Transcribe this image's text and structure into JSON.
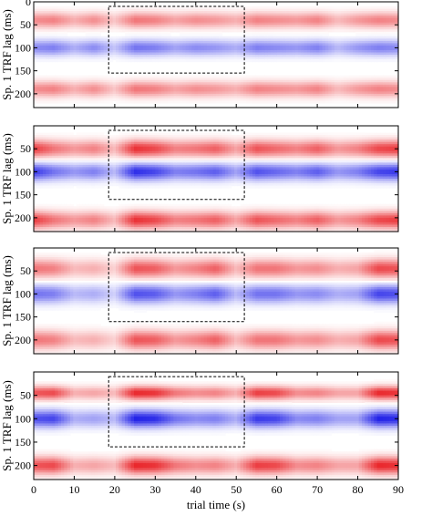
{
  "chart_data": [
    {
      "type": "heatmap",
      "panel_index": 1,
      "ylabel": "Sp. 1 TRF lag (ms)",
      "yticks": [
        0,
        50,
        100,
        150,
        200
      ],
      "ylim": [
        0,
        230
      ],
      "xlim": [
        0,
        90
      ],
      "highlight_box": {
        "x": [
          18.5,
          52
        ],
        "y": [
          10,
          155
        ]
      },
      "bands": [
        {
          "lag": 40,
          "sign": 1,
          "width": 12
        },
        {
          "lag": 100,
          "sign": -1,
          "width": 12
        },
        {
          "lag": 190,
          "sign": 1,
          "width": 12
        }
      ],
      "strength": [
        {
          "t": 0,
          "v": 0.5
        },
        {
          "t": 5,
          "v": 0.55
        },
        {
          "t": 10,
          "v": 0.35
        },
        {
          "t": 15,
          "v": 0.5
        },
        {
          "t": 20,
          "v": 0.25
        },
        {
          "t": 25,
          "v": 0.6
        },
        {
          "t": 30,
          "v": 0.55
        },
        {
          "t": 35,
          "v": 0.4
        },
        {
          "t": 40,
          "v": 0.5
        },
        {
          "t": 45,
          "v": 0.45
        },
        {
          "t": 50,
          "v": 0.35
        },
        {
          "t": 55,
          "v": 0.55
        },
        {
          "t": 60,
          "v": 0.5
        },
        {
          "t": 65,
          "v": 0.45
        },
        {
          "t": 70,
          "v": 0.55
        },
        {
          "t": 75,
          "v": 0.3
        },
        {
          "t": 80,
          "v": 0.45
        },
        {
          "t": 85,
          "v": 0.55
        },
        {
          "t": 90,
          "v": 0.5
        }
      ]
    },
    {
      "type": "heatmap",
      "panel_index": 2,
      "ylabel": "Sp. 1 TRF lag (ms)",
      "yticks": [
        50,
        100,
        150,
        200
      ],
      "ylim": [
        0,
        230
      ],
      "xlim": [
        0,
        90
      ],
      "highlight_box": {
        "x": [
          18.5,
          52
        ],
        "y": [
          10,
          160
        ]
      },
      "bands": [
        {
          "lag": 50,
          "sign": 1,
          "width": 13
        },
        {
          "lag": 100,
          "sign": -1,
          "width": 13
        },
        {
          "lag": 205,
          "sign": 1,
          "width": 13
        }
      ],
      "strength": [
        {
          "t": 0,
          "v": 0.85
        },
        {
          "t": 5,
          "v": 0.6
        },
        {
          "t": 10,
          "v": 0.45
        },
        {
          "t": 15,
          "v": 0.55
        },
        {
          "t": 20,
          "v": 0.3
        },
        {
          "t": 25,
          "v": 0.9
        },
        {
          "t": 30,
          "v": 0.8
        },
        {
          "t": 35,
          "v": 0.55
        },
        {
          "t": 40,
          "v": 0.6
        },
        {
          "t": 45,
          "v": 0.7
        },
        {
          "t": 50,
          "v": 0.4
        },
        {
          "t": 55,
          "v": 0.75
        },
        {
          "t": 60,
          "v": 0.65
        },
        {
          "t": 65,
          "v": 0.55
        },
        {
          "t": 70,
          "v": 0.7
        },
        {
          "t": 75,
          "v": 0.45
        },
        {
          "t": 80,
          "v": 0.55
        },
        {
          "t": 85,
          "v": 0.8
        },
        {
          "t": 90,
          "v": 0.85
        }
      ]
    },
    {
      "type": "heatmap",
      "panel_index": 3,
      "ylabel": "Sp. 1 TRF lag (ms)",
      "yticks": [
        50,
        100,
        150,
        200
      ],
      "ylim": [
        0,
        230
      ],
      "xlim": [
        0,
        90
      ],
      "highlight_box": {
        "x": [
          18.5,
          52
        ],
        "y": [
          10,
          160
        ]
      },
      "bands": [
        {
          "lag": 45,
          "sign": 1,
          "width": 14
        },
        {
          "lag": 100,
          "sign": -1,
          "width": 14
        },
        {
          "lag": 200,
          "sign": 1,
          "width": 14
        }
      ],
      "strength": [
        {
          "t": 0,
          "v": 0.6
        },
        {
          "t": 5,
          "v": 0.55
        },
        {
          "t": 10,
          "v": 0.3
        },
        {
          "t": 15,
          "v": 0.35
        },
        {
          "t": 20,
          "v": 0.2
        },
        {
          "t": 25,
          "v": 0.75
        },
        {
          "t": 30,
          "v": 0.7
        },
        {
          "t": 35,
          "v": 0.45
        },
        {
          "t": 40,
          "v": 0.55
        },
        {
          "t": 45,
          "v": 0.7
        },
        {
          "t": 50,
          "v": 0.3
        },
        {
          "t": 55,
          "v": 0.6
        },
        {
          "t": 60,
          "v": 0.6
        },
        {
          "t": 65,
          "v": 0.45
        },
        {
          "t": 70,
          "v": 0.5
        },
        {
          "t": 75,
          "v": 0.35
        },
        {
          "t": 80,
          "v": 0.4
        },
        {
          "t": 85,
          "v": 0.8
        },
        {
          "t": 90,
          "v": 0.75
        }
      ]
    },
    {
      "type": "heatmap",
      "panel_index": 4,
      "ylabel": "Sp. 1 TRF lag (ms)",
      "xlabel": "trial time (s)",
      "yticks": [
        50,
        100,
        150,
        200
      ],
      "xticks": [
        0,
        10,
        20,
        30,
        40,
        50,
        60,
        70,
        80,
        90
      ],
      "ylim": [
        0,
        230
      ],
      "xlim": [
        0,
        90
      ],
      "highlight_box": {
        "x": [
          18.5,
          52
        ],
        "y": [
          10,
          160
        ]
      },
      "bands": [
        {
          "lag": 45,
          "sign": 1,
          "width": 10
        },
        {
          "lag": 100,
          "sign": -1,
          "width": 13
        },
        {
          "lag": 200,
          "sign": 1,
          "width": 13
        }
      ],
      "strength": [
        {
          "t": 0,
          "v": 0.75
        },
        {
          "t": 5,
          "v": 0.8
        },
        {
          "t": 10,
          "v": 0.35
        },
        {
          "t": 15,
          "v": 0.4
        },
        {
          "t": 20,
          "v": 0.3
        },
        {
          "t": 25,
          "v": 0.95
        },
        {
          "t": 30,
          "v": 0.9
        },
        {
          "t": 35,
          "v": 0.6
        },
        {
          "t": 40,
          "v": 0.5
        },
        {
          "t": 45,
          "v": 0.55
        },
        {
          "t": 50,
          "v": 0.35
        },
        {
          "t": 55,
          "v": 0.85
        },
        {
          "t": 60,
          "v": 0.8
        },
        {
          "t": 65,
          "v": 0.5
        },
        {
          "t": 70,
          "v": 0.55
        },
        {
          "t": 75,
          "v": 0.4
        },
        {
          "t": 80,
          "v": 0.4
        },
        {
          "t": 85,
          "v": 0.95
        },
        {
          "t": 90,
          "v": 0.9
        }
      ]
    }
  ],
  "colors": {
    "positive": "#e8191e",
    "negative": "#1515e6",
    "zero": "#ffffff"
  }
}
